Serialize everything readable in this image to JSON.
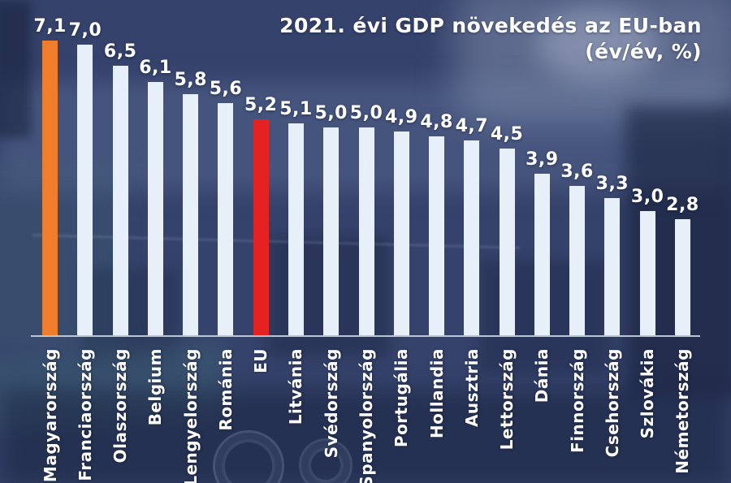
{
  "title": {
    "line1": "2021. évi GDP növekedés az EU-ban",
    "line2": "(év/év, %)"
  },
  "chart_data": {
    "type": "bar",
    "title": "2021. évi GDP növekedés az EU-ban (év/év, %)",
    "unit": "% (év/év)",
    "categories": [
      "Magyarország",
      "Franciaország",
      "Olaszország",
      "Belgium",
      "Lengyelország",
      "Románia",
      "EU",
      "Litvánia",
      "Svédország",
      "Spanyolország",
      "Portugália",
      "Hollandia",
      "Ausztria",
      "Lettország",
      "Dánia",
      "Finnország",
      "Csehország",
      "Szlovákia",
      "Németország"
    ],
    "values": [
      7.1,
      7.0,
      6.5,
      6.1,
      5.8,
      5.6,
      5.2,
      5.1,
      5.0,
      5.0,
      4.9,
      4.8,
      4.7,
      4.5,
      3.9,
      3.6,
      3.3,
      3.0,
      2.8
    ],
    "value_labels": [
      "7,1",
      "7,0",
      "6,5",
      "6,1",
      "5,8",
      "5,6",
      "5,2",
      "5,1",
      "5,0",
      "5,0",
      "4,9",
      "4,8",
      "4,7",
      "4,5",
      "3,9",
      "3,6",
      "3,3",
      "3,0",
      "2,8"
    ],
    "default_bar_color": "#E7EFF8",
    "highlight_bars": {
      "0": "#EF7D2C",
      "6": "#E52222"
    },
    "baseline_color": "#C6D1E0",
    "background_color": "#35426B",
    "text_color": "#FFFFFF",
    "ylim": [
      0,
      7.5
    ],
    "grid": false,
    "legend": false,
    "value_label_position": "above-bar",
    "category_label_rotation": -90
  }
}
